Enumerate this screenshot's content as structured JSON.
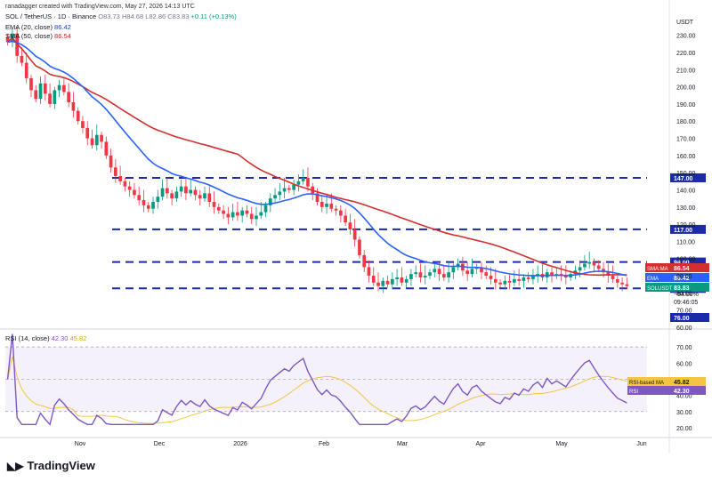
{
  "header": {
    "created": "ranadagger created with TradingView.com, May 27, 2026 14:13 UTC",
    "symbol": "SOL / TetherUS · 1D · Binance",
    "o": "O83.73",
    "h": "H84.68",
    "l": "L82.86",
    "c": "C83.83",
    "chg": "+0.11 (+0.13%)",
    "ema_label": "EMA (20, close)",
    "ema_value": "86.42",
    "sma_label": "SMA (50, close)",
    "sma_value": "86.54",
    "currency": "USDT"
  },
  "rsi_legend": {
    "label": "RSI (14, close)",
    "rsi": "42.30",
    "ma": "45.82"
  },
  "footer": {
    "brand": "TradingView"
  },
  "colors": {
    "up": "#089981",
    "down": "#f23645",
    "ema": "#2962ff",
    "sma": "#d32f2f",
    "level": "#1a2aa8",
    "rsi": "#7e57c2",
    "rsi_ma": "#f4c542"
  },
  "chart_data": {
    "type": "candlestick",
    "x_ticks": [
      "Nov",
      "Dec",
      "2026",
      "Feb",
      "Mar",
      "Apr",
      "May",
      "Jun"
    ],
    "y_ticks": [
      "60.00",
      "70.00",
      "76.00",
      "82.65",
      "90.00",
      "100.00",
      "110.00",
      "117.00",
      "120.00",
      "130.00",
      "140.00",
      "147.00",
      "150.00",
      "160.00",
      "170.00",
      "180.00",
      "190.00",
      "200.00",
      "210.00",
      "220.00",
      "230.00"
    ],
    "y_ticks_price": [
      60,
      70,
      80,
      90,
      100,
      110,
      120,
      130,
      140,
      150,
      160,
      170,
      180,
      190,
      200,
      210,
      220,
      230
    ],
    "levels": [
      {
        "value": 147.0,
        "label": "147.00"
      },
      {
        "value": 117.0,
        "label": "117.00"
      },
      {
        "value": 98.0,
        "label": "98.00"
      },
      {
        "value": 82.65,
        "label": "82.65"
      }
    ],
    "badges": [
      {
        "label": "SMA:MA",
        "value": "86.54",
        "color": "#d32f2f"
      },
      {
        "label": "EMA",
        "value": "86.42",
        "color": "#2962ff"
      },
      {
        "label": "SOLUSDT",
        "value": "83.83",
        "color": "#089981"
      },
      {
        "label": "",
        "value": "76.00",
        "color": "#1a2aa8"
      }
    ],
    "countdown": "−64.00%",
    "timer": "09:46:05",
    "rsi": {
      "y_ticks": [
        "20.00",
        "30.00",
        "40.00",
        "50.00",
        "60.00",
        "70.00"
      ],
      "upper": 70,
      "lower": 30,
      "badges": [
        {
          "label": "RSI-based MA",
          "value": "45.82"
        },
        {
          "label": "RSI",
          "value": "42.30"
        }
      ]
    },
    "closes": [
      226,
      231,
      218,
      214,
      205,
      198,
      193,
      202,
      196,
      190,
      198,
      201,
      197,
      191,
      186,
      180,
      176,
      170,
      166,
      172,
      168,
      160,
      153,
      148,
      145,
      142,
      140,
      137,
      134,
      131,
      129,
      133,
      136,
      141,
      138,
      135,
      139,
      142,
      138,
      140,
      137,
      135,
      138,
      133,
      130,
      128,
      126,
      124,
      127,
      125,
      128,
      126,
      123,
      125,
      127,
      131,
      135,
      137,
      139,
      141,
      140,
      143,
      145,
      147,
      142,
      138,
      133,
      130,
      132,
      129,
      128,
      125,
      121,
      117,
      111,
      102,
      95,
      90,
      86,
      84,
      87,
      85,
      88,
      89,
      86,
      88,
      91,
      92,
      89,
      90,
      92,
      94,
      91,
      89,
      92,
      95,
      97,
      93,
      91,
      94,
      95,
      92,
      90,
      88,
      86,
      85,
      87,
      86,
      88,
      87,
      89,
      88,
      90,
      91,
      89,
      92,
      90,
      91,
      90,
      89,
      91,
      93,
      95,
      97,
      98,
      96,
      94,
      92,
      90,
      88,
      86,
      85,
      84
    ]
  }
}
